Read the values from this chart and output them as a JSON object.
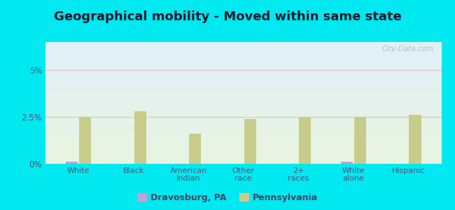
{
  "title": "Geographical mobility - Moved within same state",
  "categories": [
    "White",
    "Black",
    "American\nIndian",
    "Other\nrace",
    "2+\nraces",
    "White\nalone",
    "Hispanic"
  ],
  "dravosburg_values": [
    0.12,
    0.0,
    0.0,
    0.0,
    0.0,
    0.12,
    0.0
  ],
  "pennsylvania_values": [
    2.5,
    2.8,
    1.6,
    2.4,
    2.5,
    2.5,
    2.6
  ],
  "dravosburg_color": "#c4a0d4",
  "pennsylvania_color": "#c8cc8a",
  "ylim": [
    0,
    6.5
  ],
  "ytick_labels": [
    "0%",
    "2.5%",
    "5%"
  ],
  "ytick_vals": [
    0,
    2.5,
    5.0
  ],
  "outer_background": "#00e8f0",
  "plot_bg_top": "#e0f0f8",
  "plot_bg_bottom": "#e8f5e0",
  "grid_color": "#e8c0cc",
  "title_fontsize": 13,
  "title_color": "#1a1a2e",
  "tick_color": "#555577",
  "legend_dravosburg": "Dravosburg, PA",
  "legend_pennsylvania": "Pennsylvania",
  "watermark": "City-Data.com"
}
